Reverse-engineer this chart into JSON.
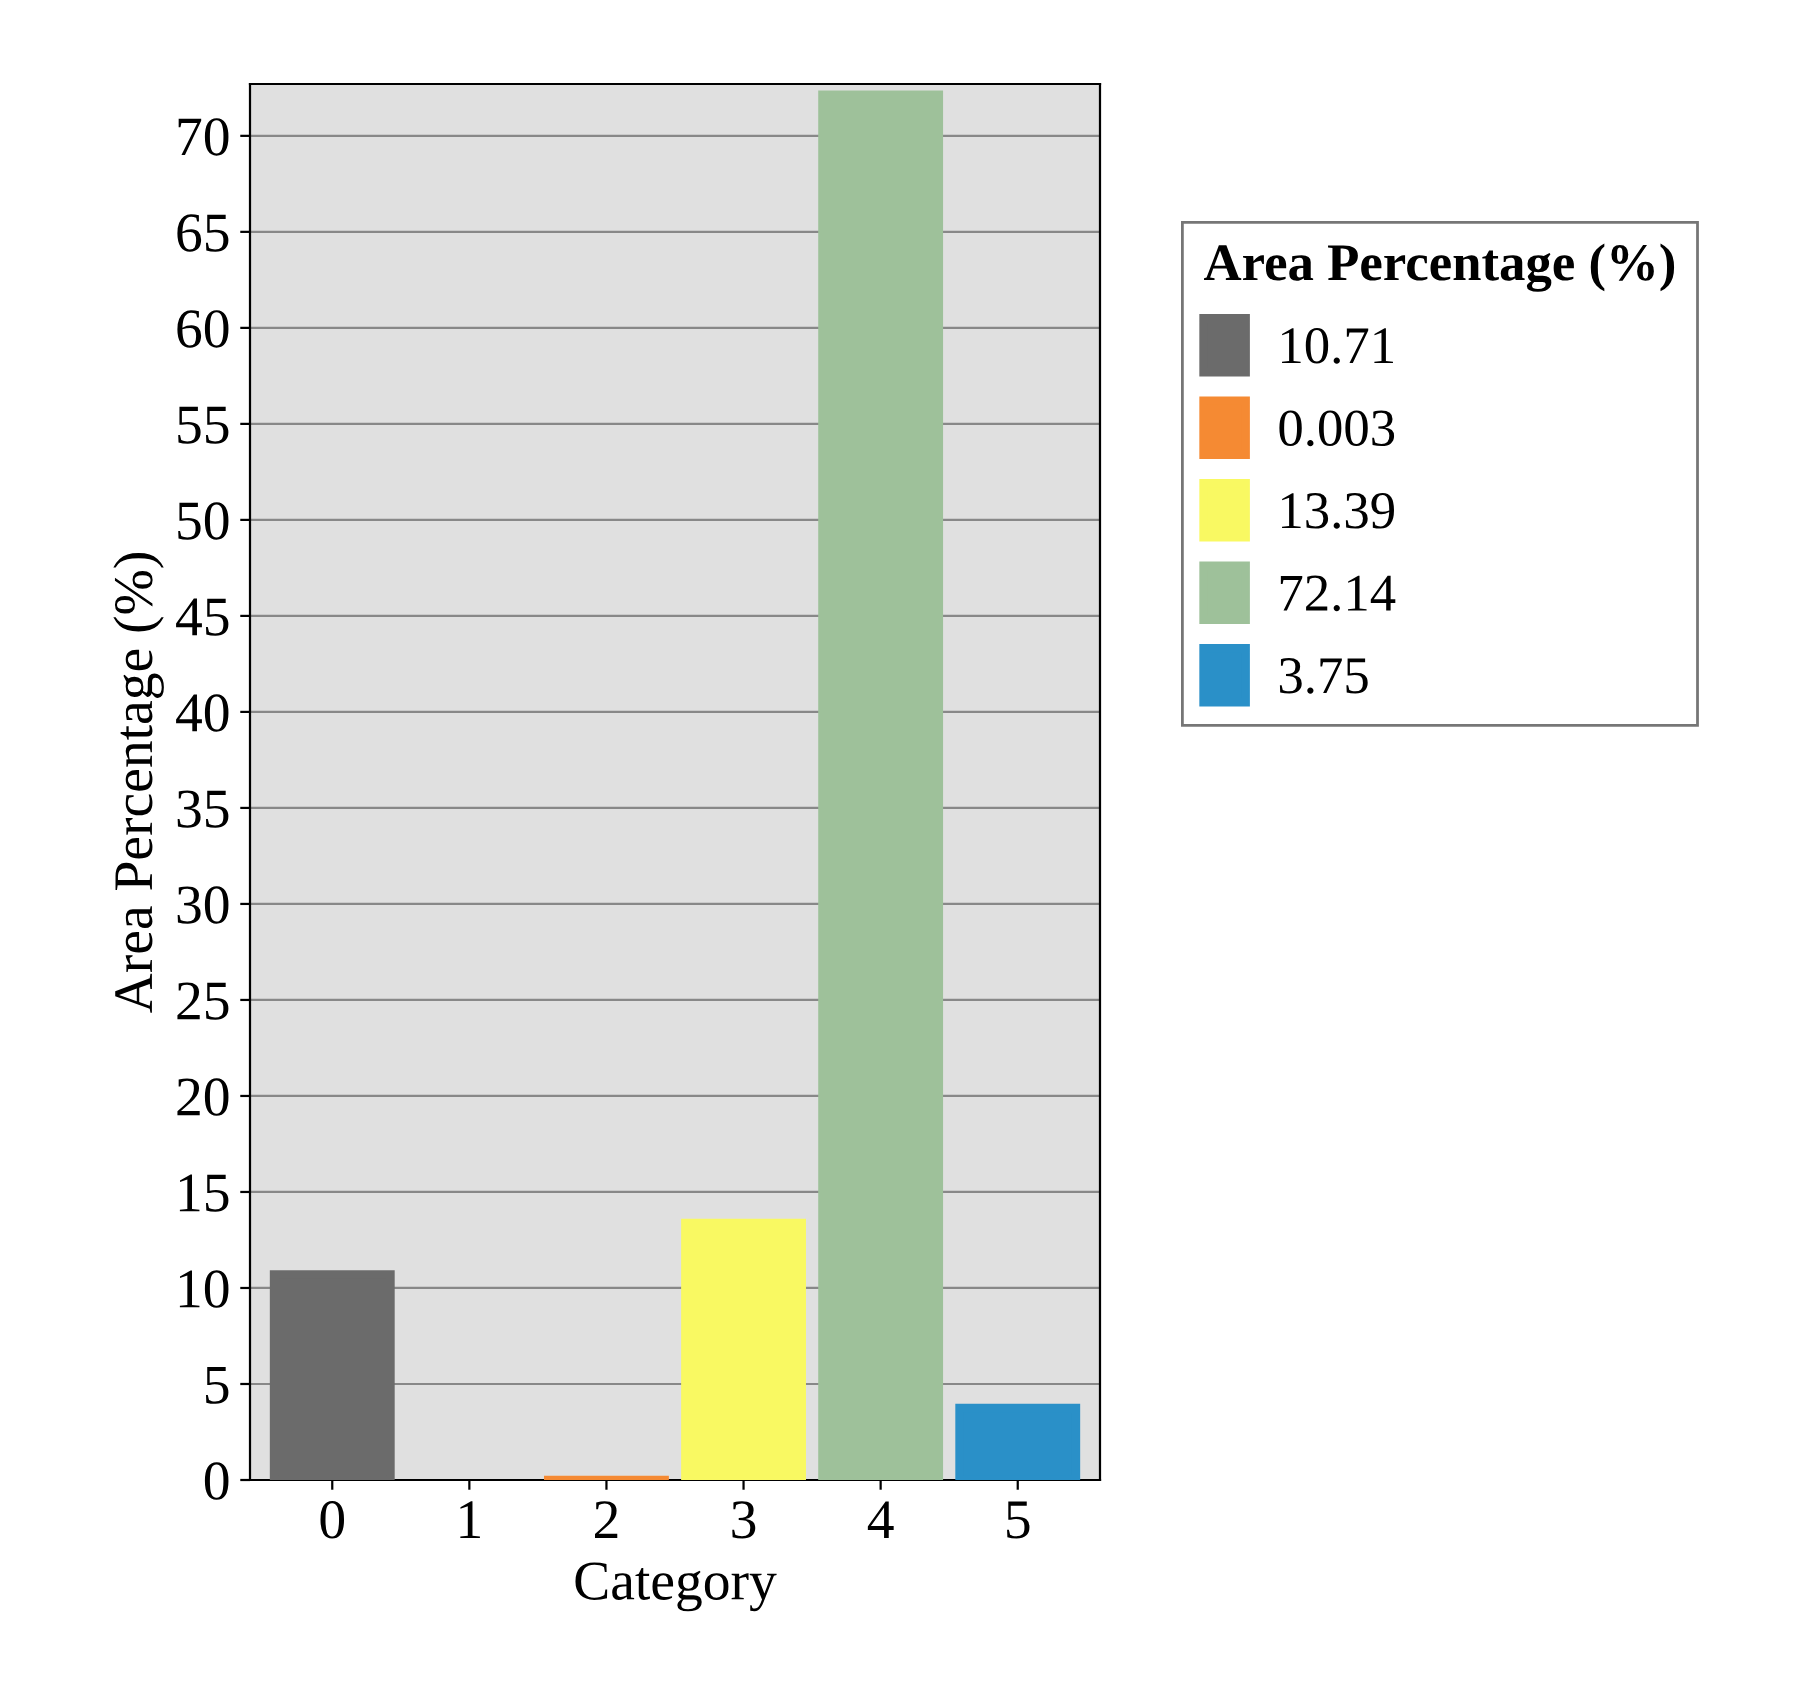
{
  "chart_data": {
    "type": "bar",
    "xlabel": "Category",
    "ylabel": "Area Percentage (%)",
    "legend_title": "Area Percentage (%)",
    "categories": [
      "0",
      "1",
      "2",
      "3",
      "4",
      "5"
    ],
    "series": [
      {
        "name": "10.71",
        "color": "#6b6b6b",
        "values": [
          10.71,
          null,
          null,
          null,
          null,
          null
        ]
      },
      {
        "name": "0.003",
        "color": "#f58a33",
        "values": [
          null,
          null,
          0.003,
          null,
          null,
          null
        ]
      },
      {
        "name": "13.39",
        "color": "#f9f962",
        "values": [
          null,
          null,
          null,
          13.39,
          null,
          null
        ]
      },
      {
        "name": "72.14",
        "color": "#9ec19a",
        "values": [
          null,
          null,
          null,
          null,
          72.14,
          null
        ]
      },
      {
        "name": "3.75",
        "color": "#2a90c8",
        "values": [
          null,
          null,
          null,
          null,
          null,
          3.75
        ]
      }
    ],
    "ylim": [
      0,
      72.7
    ],
    "yticks": [
      0,
      5,
      10,
      15,
      20,
      25,
      30,
      35,
      40,
      45,
      50,
      55,
      60,
      65,
      70
    ],
    "grid": "y",
    "legend": "top right"
  }
}
